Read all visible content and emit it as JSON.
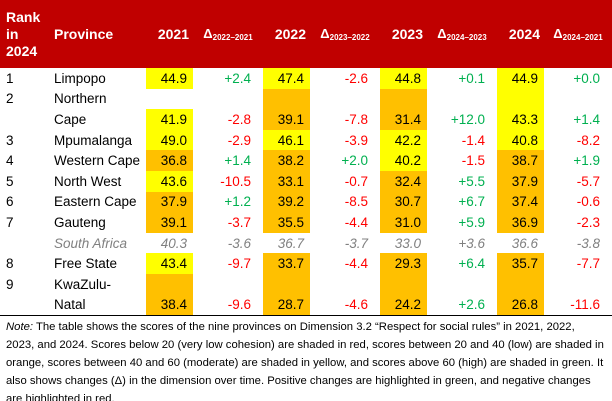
{
  "header": {
    "rank": "Rank in 2024",
    "province": "Province",
    "y2021": "2021",
    "d1_main": "Δ",
    "d1_sub": "2022–2021",
    "y2022": "2022",
    "d2_main": "Δ",
    "d2_sub": "2023–2022",
    "y2023": "2023",
    "d3_main": "Δ",
    "d3_sub": "2024–2023",
    "y2024": "2024",
    "d4_main": "Δ",
    "d4_sub": "2024–2021"
  },
  "rows": [
    {
      "rank": "1",
      "province": "Limpopo",
      "s2021": "44.9",
      "d1": "+2.4",
      "s2022": "47.4",
      "d2": "-2.6",
      "s2023": "44.8",
      "d3": "+0.1",
      "s2024": "44.9",
      "d4": "+0.0"
    },
    {
      "rank": "2",
      "province_a": "Northern",
      "province_b": "Cape",
      "s2021": "41.9",
      "d1": "-2.8",
      "s2022": "39.1",
      "d2": "-7.8",
      "s2023": "31.4",
      "d3": "+12.0",
      "s2024": "43.3",
      "d4": "+1.4"
    },
    {
      "rank": "3",
      "province": "Mpumalanga",
      "s2021": "49.0",
      "d1": "-2.9",
      "s2022": "46.1",
      "d2": "-3.9",
      "s2023": "42.2",
      "d3": "-1.4",
      "s2024": "40.8",
      "d4": "-8.2"
    },
    {
      "rank": "4",
      "province": "Western Cape",
      "s2021": "36.8",
      "d1": "+1.4",
      "s2022": "38.2",
      "d2": "+2.0",
      "s2023": "40.2",
      "d3": "-1.5",
      "s2024": "38.7",
      "d4": "+1.9"
    },
    {
      "rank": "5",
      "province": "North West",
      "s2021": "43.6",
      "d1": "-10.5",
      "s2022": "33.1",
      "d2": "-0.7",
      "s2023": "32.4",
      "d3": "+5.5",
      "s2024": "37.9",
      "d4": "-5.7"
    },
    {
      "rank": "6",
      "province": "Eastern Cape",
      "s2021": "37.9",
      "d1": "+1.2",
      "s2022": "39.2",
      "d2": "-8.5",
      "s2023": "30.7",
      "d3": "+6.7",
      "s2024": "37.4",
      "d4": "-0.6"
    },
    {
      "rank": "7",
      "province": "Gauteng",
      "s2021": "39.1",
      "d1": "-3.7",
      "s2022": "35.5",
      "d2": "-4.4",
      "s2023": "31.0",
      "d3": "+5.9",
      "s2024": "36.9",
      "d4": "-2.3"
    },
    {
      "province": "South Africa",
      "s2021": "40.3",
      "d1": "-3.6",
      "s2022": "36.7",
      "d2": "-3.7",
      "s2023": "33.0",
      "d3": "+3.6",
      "s2024": "36.6",
      "d4": "-3.8"
    },
    {
      "rank": "8",
      "province": "Free State",
      "s2021": "43.4",
      "d1": "-9.7",
      "s2022": "33.7",
      "d2": "-4.4",
      "s2023": "29.3",
      "d3": "+6.4",
      "s2024": "35.7",
      "d4": "-7.7"
    },
    {
      "rank": "9",
      "province_a": "KwaZulu-",
      "province_b": "Natal",
      "s2021": "38.4",
      "d1": "-9.6",
      "s2022": "28.7",
      "d2": "-4.6",
      "s2023": "24.2",
      "d3": "+2.6",
      "s2024": "26.8",
      "d4": "-11.6"
    }
  ],
  "note": {
    "label": "Note:",
    "text": " The table shows the scores of the nine provinces on Dimension 3.2 “Respect for social rules” in 2021, 2022, 2023, and 2024. Scores below 20 (very low cohesion) are shaded in red, scores between 20 and 40 (low) are shaded in orange, scores between 40 and 60 (moderate) are shaded in yellow, and scores above 60 (high) are shaded in green. It also shows changes (Δ) in the dimension over time. Positive changes are highlighted in green, and negative changes are highlighted in red."
  },
  "colors": {
    "header_bg": "#c00000",
    "moderate_yellow": "#ffff00",
    "low_orange": "#ffc000",
    "positive_green": "#00b050",
    "negative_red": "#ff0000"
  }
}
